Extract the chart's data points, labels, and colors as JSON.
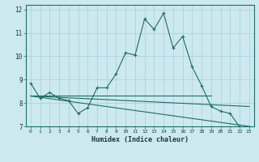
{
  "xlabel": "Humidex (Indice chaleur)",
  "background_color": "#cce9ef",
  "grid_color": "#aacdd5",
  "line_color": "#1a6e64",
  "xlim": [
    -0.5,
    23.5
  ],
  "ylim": [
    7,
    12.2
  ],
  "yticks": [
    7,
    8,
    9,
    10,
    11,
    12
  ],
  "xticks": [
    0,
    1,
    2,
    3,
    4,
    5,
    6,
    7,
    8,
    9,
    10,
    11,
    12,
    13,
    14,
    15,
    16,
    17,
    18,
    19,
    20,
    21,
    22,
    23
  ],
  "series1_x": [
    0,
    1,
    2,
    3,
    4,
    5,
    6,
    7,
    8,
    9,
    10,
    11,
    12,
    13,
    14,
    15,
    16,
    17,
    18,
    19,
    20,
    21,
    22,
    23
  ],
  "series1_y": [
    8.85,
    8.2,
    8.45,
    8.2,
    8.1,
    7.55,
    7.8,
    8.65,
    8.65,
    9.25,
    10.15,
    10.05,
    11.6,
    11.15,
    11.85,
    10.35,
    10.85,
    9.55,
    8.75,
    7.85,
    7.65,
    7.55,
    6.98,
    6.98
  ],
  "series3_x": [
    0,
    19
  ],
  "series3_y": [
    8.3,
    8.3
  ],
  "series4_x": [
    0,
    23
  ],
  "series4_y": [
    8.3,
    7.85
  ],
  "series5_x": [
    0,
    23
  ],
  "series5_y": [
    8.3,
    7.0
  ]
}
